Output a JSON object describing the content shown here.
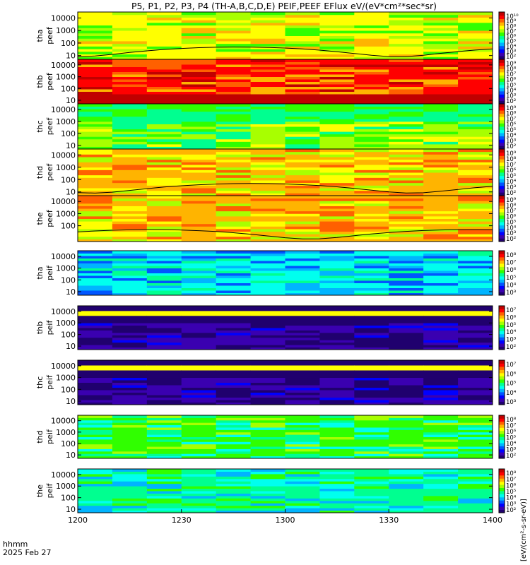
{
  "title": "P5, P1, P2, P3, P4 (TH-A,B,C,D,E) PEIF,PEEF EFlux eV/(eV*cm²*sec*sr)",
  "footer": {
    "line1": "hhmm",
    "line2": "2025 Feb 27"
  },
  "colorbar_unit_label": "[eV/(cm²-s-sr-eV)]",
  "colormap": [
    "#20006e",
    "#3a00b0",
    "#0000ff",
    "#0055ff",
    "#00b4ff",
    "#00ffee",
    "#00ff90",
    "#30ff00",
    "#a8ff00",
    "#ffff00",
    "#ffb400",
    "#ff6000",
    "#ff0000",
    "#c00000"
  ],
  "chart_data": {
    "type": "heatmap",
    "x_ticks": [
      "1200",
      "1230",
      "1300",
      "1330",
      "1400"
    ],
    "xlim": [
      "12:00",
      "14:00"
    ],
    "y_scale": "log",
    "ylim": [
      5,
      30000
    ],
    "panels": [
      {
        "probe": "tha",
        "product": "peef",
        "ylabel": [
          "tha",
          "peef"
        ],
        "y_ticks": [
          "10",
          "100",
          "1000",
          "10000"
        ],
        "cbar_ticks": [
          "10¹⁰",
          "10⁹",
          "10⁸",
          "10⁷",
          "10⁶",
          "10⁵",
          "10⁴",
          "10³",
          "10²"
        ],
        "overlay_curve": true,
        "dominant_color": "#ffff00"
      },
      {
        "probe": "thb",
        "product": "peef",
        "ylabel": [
          "thb",
          "peef"
        ],
        "y_ticks": [
          "10",
          "100",
          "1000",
          "10000"
        ],
        "cbar_ticks": [
          "10⁹",
          "10⁸",
          "10⁷",
          "10⁶",
          "10⁵",
          "10⁴",
          "10³",
          "10²"
        ],
        "overlay_curve": false,
        "dominant_color": "#ff0000"
      },
      {
        "probe": "thc",
        "product": "peef",
        "ylabel": [
          "thc",
          "peef"
        ],
        "y_ticks": [
          "10",
          "100",
          "1000",
          "10000"
        ],
        "cbar_ticks": [
          "10⁹",
          "10⁸",
          "10⁷",
          "10⁶",
          "10⁵",
          "10⁴",
          "10³",
          "10²"
        ],
        "overlay_curve": false,
        "dominant_color": "#a8ff00"
      },
      {
        "probe": "thd",
        "product": "peef",
        "ylabel": [
          "thd",
          "peef"
        ],
        "y_ticks": [
          "10",
          "100",
          "1000",
          "10000"
        ],
        "cbar_ticks": [
          "10⁹",
          "10⁸",
          "10⁷",
          "10⁶",
          "10⁵",
          "10⁴",
          "10³",
          "10²"
        ],
        "overlay_curve": true,
        "dominant_color": "#ffb400"
      },
      {
        "probe": "the",
        "product": "peef",
        "ylabel": [
          "the",
          "peef"
        ],
        "y_ticks": [
          "100",
          "1000",
          "10000"
        ],
        "cbar_ticks": [
          "10⁹",
          "10⁸",
          "10⁷",
          "10⁶",
          "10⁵",
          "10⁴",
          "10³",
          "10²"
        ],
        "overlay_curve": true,
        "dominant_color": "#ffb400"
      },
      {
        "probe": "tha",
        "product": "peif",
        "ylabel": [
          "tha",
          "peif"
        ],
        "y_ticks": [
          "10",
          "100",
          "1000",
          "10000"
        ],
        "cbar_ticks": [
          "10⁸",
          "10⁷",
          "10⁶",
          "10⁵",
          "10⁴",
          "10³"
        ],
        "overlay_curve": false,
        "dominant_color": "#00ffee"
      },
      {
        "probe": "thb",
        "product": "peif",
        "ylabel": [
          "thb",
          "peif"
        ],
        "y_ticks": [
          "10",
          "100",
          "1000",
          "10000"
        ],
        "cbar_ticks": [
          "10⁷",
          "10⁶",
          "10⁵",
          "10⁴",
          "10³",
          "10²"
        ],
        "overlay_curve": false,
        "dominant_color": "#3a00b0"
      },
      {
        "probe": "thc",
        "product": "peif",
        "ylabel": [
          "thc",
          "peif"
        ],
        "y_ticks": [
          "10",
          "100",
          "1000",
          "10000"
        ],
        "cbar_ticks": [
          "10⁷",
          "10⁶",
          "10⁵",
          "10⁴",
          "10³"
        ],
        "overlay_curve": false,
        "dominant_color": "#3a00b0"
      },
      {
        "probe": "thd",
        "product": "peif",
        "ylabel": [
          "thd",
          "peif"
        ],
        "y_ticks": [
          "10",
          "100",
          "1000",
          "10000"
        ],
        "cbar_ticks": [
          "10⁸",
          "10⁷",
          "10⁶",
          "10⁵",
          "10⁴",
          "10³",
          "10²"
        ],
        "overlay_curve": false,
        "dominant_color": "#30ff00"
      },
      {
        "probe": "the",
        "product": "peif",
        "ylabel": [
          "the",
          "peif"
        ],
        "y_ticks": [
          "10",
          "100",
          "1000",
          "10000"
        ],
        "cbar_ticks": [
          "10⁸",
          "10⁷",
          "10⁶",
          "10⁵",
          "10⁴",
          "10³",
          "10²"
        ],
        "overlay_curve": false,
        "dominant_color": "#00ff90"
      }
    ]
  }
}
